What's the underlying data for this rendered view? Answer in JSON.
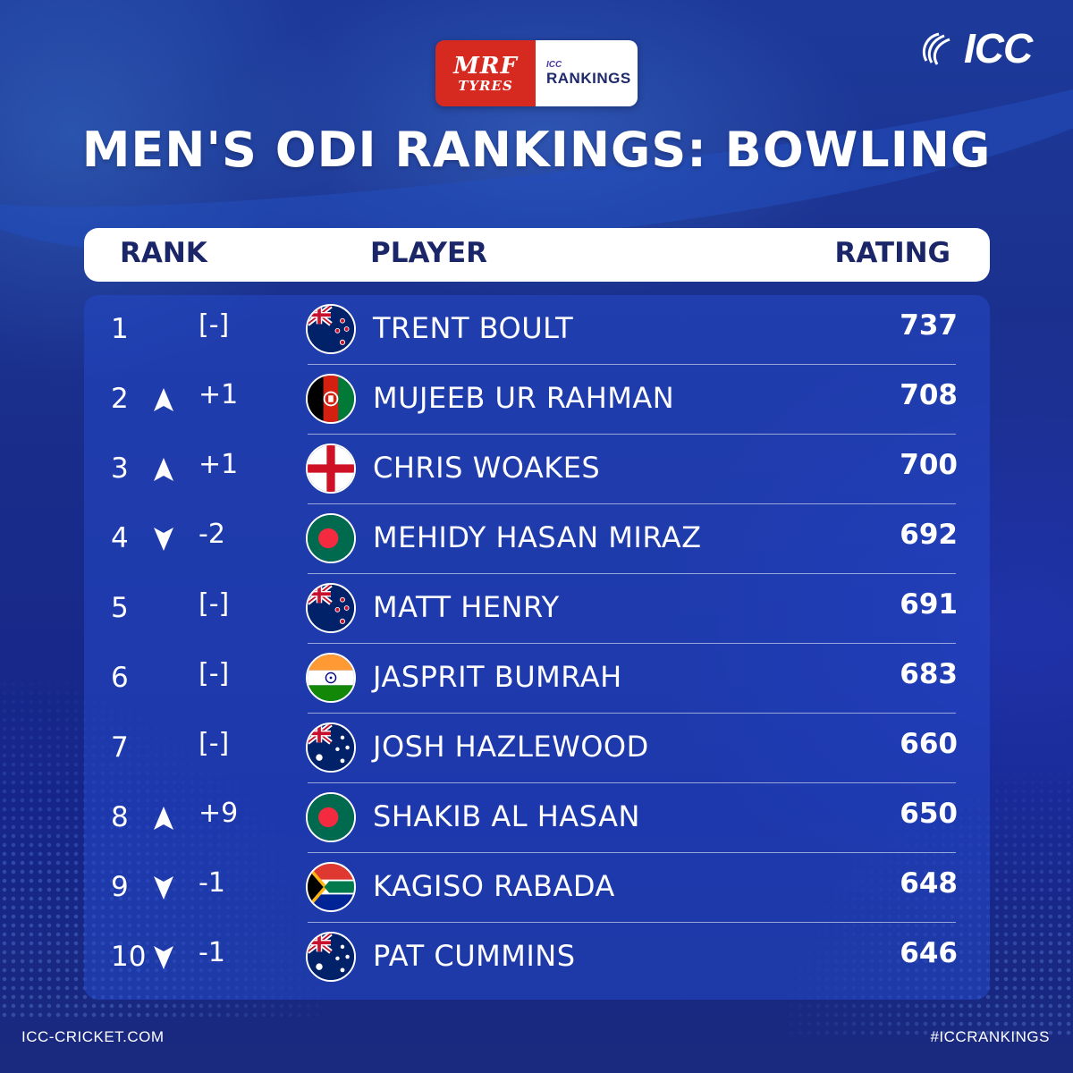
{
  "sponsor": {
    "brand": "MRF",
    "brand_sub": "TYRES",
    "rankings_small": "ICC",
    "rankings_big": "RANKINGS"
  },
  "logo": {
    "text": "ICC",
    "icon": "icc-swirl-icon"
  },
  "title": "MEN'S ODI RANKINGS: BOWLING",
  "columns": {
    "rank": "RANK",
    "player": "PLAYER",
    "rating": "RATING"
  },
  "colors": {
    "background": "#1a2f86",
    "panel": "#2448c8",
    "header_bg": "#ffffff",
    "header_text": "#1b2669",
    "sponsor_red": "#d62a20"
  },
  "rows": [
    {
      "rank": "1",
      "trend": "none",
      "change": "[-]",
      "flag": "new-zealand-flag",
      "player": "TRENT BOULT",
      "rating": "737"
    },
    {
      "rank": "2",
      "trend": "up",
      "change": "+1",
      "flag": "afghanistan-flag",
      "player": "MUJEEB UR RAHMAN",
      "rating": "708"
    },
    {
      "rank": "3",
      "trend": "up",
      "change": "+1",
      "flag": "england-flag",
      "player": "CHRIS WOAKES",
      "rating": "700"
    },
    {
      "rank": "4",
      "trend": "down",
      "change": "-2",
      "flag": "bangladesh-flag",
      "player": "MEHIDY HASAN MIRAZ",
      "rating": "692"
    },
    {
      "rank": "5",
      "trend": "none",
      "change": "[-]",
      "flag": "new-zealand-flag",
      "player": "MATT HENRY",
      "rating": "691"
    },
    {
      "rank": "6",
      "trend": "none",
      "change": "[-]",
      "flag": "india-flag",
      "player": "JASPRIT BUMRAH",
      "rating": "683"
    },
    {
      "rank": "7",
      "trend": "none",
      "change": "[-]",
      "flag": "australia-flag",
      "player": "JOSH HAZLEWOOD",
      "rating": "660"
    },
    {
      "rank": "8",
      "trend": "up",
      "change": "+9",
      "flag": "bangladesh-flag",
      "player": "SHAKIB AL HASAN",
      "rating": "650"
    },
    {
      "rank": "9",
      "trend": "down",
      "change": "-1",
      "flag": "south-africa-flag",
      "player": "KAGISO RABADA",
      "rating": "648"
    },
    {
      "rank": "10",
      "trend": "down",
      "change": "-1",
      "flag": "australia-flag",
      "player": "PAT CUMMINS",
      "rating": "646"
    }
  ],
  "footer": {
    "website": "ICC-CRICKET.COM",
    "hashtag": "#ICCRANKINGS"
  }
}
